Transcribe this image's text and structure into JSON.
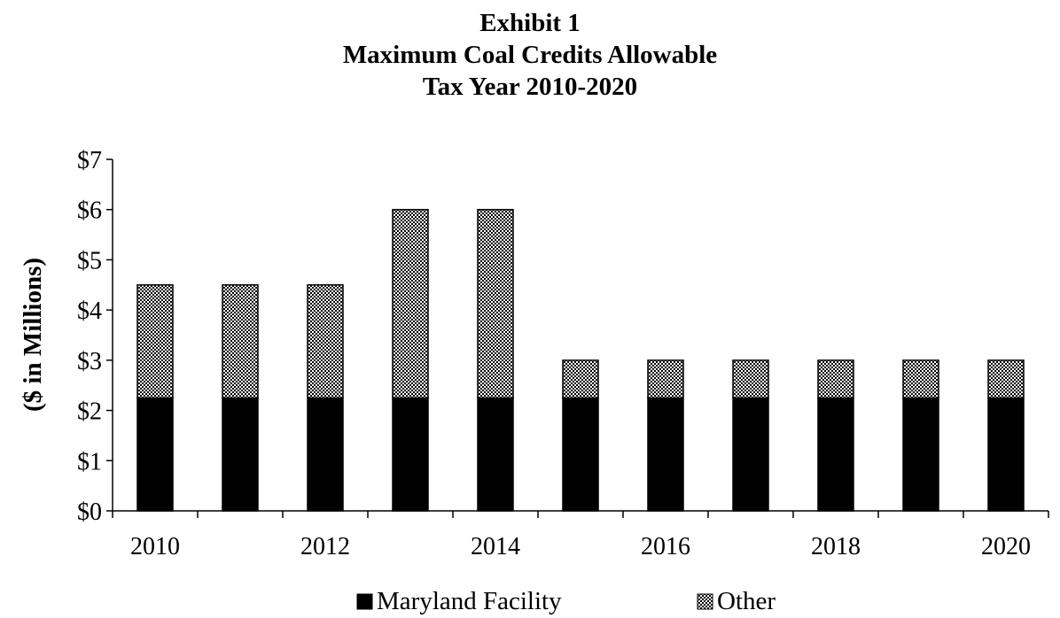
{
  "chart_data": {
    "type": "bar",
    "stacked": true,
    "title": [
      "Exhibit 1",
      "Maximum Coal Credits Allowable",
      "Tax Year 2010-2020"
    ],
    "xlabel": "",
    "ylabel": "($ in Millions)",
    "x": [
      2010,
      2011,
      2012,
      2013,
      2014,
      2015,
      2016,
      2017,
      2018,
      2019,
      2020
    ],
    "x_tick_labels": [
      "2010",
      "2012",
      "2014",
      "2016",
      "2018",
      "2020"
    ],
    "y_tick_labels": [
      "$0",
      "$1",
      "$2",
      "$3",
      "$4",
      "$5",
      "$6",
      "$7"
    ],
    "ylim": [
      0,
      7
    ],
    "grid": false,
    "legend_position": "bottom",
    "series": [
      {
        "name": "Maryland Facility",
        "color": "#000000",
        "pattern": "solid",
        "values": [
          2.25,
          2.25,
          2.25,
          2.25,
          2.25,
          2.25,
          2.25,
          2.25,
          2.25,
          2.25,
          2.25
        ]
      },
      {
        "name": "Other",
        "color": "#000000",
        "pattern": "checkered",
        "values": [
          2.25,
          2.25,
          2.25,
          3.75,
          3.75,
          0.75,
          0.75,
          0.75,
          0.75,
          0.75,
          0.75
        ]
      }
    ]
  }
}
